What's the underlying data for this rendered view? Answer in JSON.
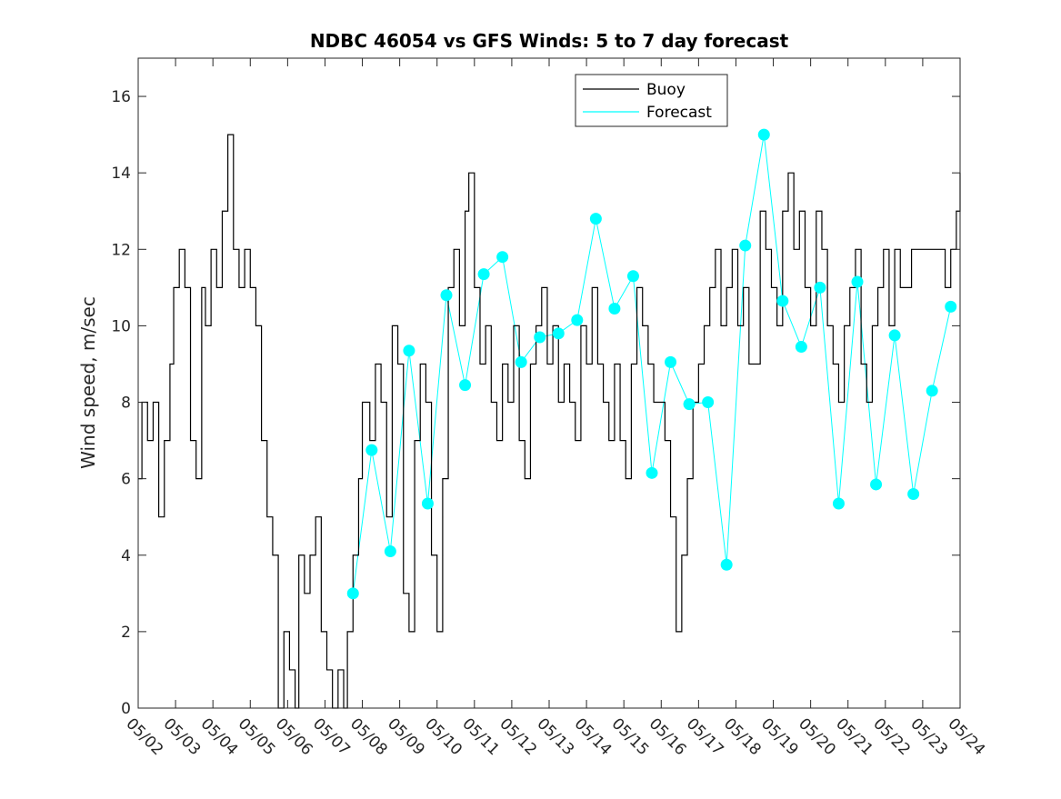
{
  "chart_data": {
    "type": "line",
    "title": "NDBC 46054 vs GFS Winds: 5 to 7 day forecast",
    "xlabel": "",
    "ylabel": "Wind speed, m/sec",
    "ylim": [
      0,
      17
    ],
    "yticks": [
      0,
      2,
      4,
      6,
      8,
      10,
      12,
      14,
      16
    ],
    "xlim_days": [
      0,
      22
    ],
    "xticks": [
      "05/02",
      "05/03",
      "05/04",
      "05/05",
      "05/06",
      "05/07",
      "05/08",
      "05/09",
      "05/10",
      "05/11",
      "05/12",
      "05/13",
      "05/14",
      "05/15",
      "05/16",
      "05/17",
      "05/18",
      "05/19",
      "05/20",
      "05/21",
      "05/22",
      "05/23",
      "05/24"
    ],
    "legend": {
      "placement": "top-right",
      "entries": [
        "Buoy",
        "Forecast"
      ]
    },
    "colors": {
      "buoy": "#000000",
      "forecast": "#00ffff"
    },
    "buoy": {
      "name": "Buoy",
      "x": [
        0,
        0.1,
        0.25,
        0.4,
        0.55,
        0.7,
        0.85,
        0.95,
        1.1,
        1.25,
        1.4,
        1.55,
        1.7,
        1.8,
        1.95,
        2.1,
        2.25,
        2.4,
        2.55,
        2.7,
        2.85,
        3.0,
        3.15,
        3.3,
        3.45,
        3.6,
        3.75,
        3.9,
        4.05,
        4.2,
        4.3,
        4.45,
        4.6,
        4.75,
        4.9,
        5.05,
        5.2,
        5.35,
        5.5,
        5.6,
        5.75,
        5.9,
        6.0,
        6.2,
        6.35,
        6.5,
        6.65,
        6.8,
        6.95,
        7.1,
        7.25,
        7.4,
        7.55,
        7.7,
        7.85,
        8.0,
        8.15,
        8.3,
        8.45,
        8.6,
        8.75,
        8.85,
        9.0,
        9.15,
        9.3,
        9.45,
        9.6,
        9.75,
        9.9,
        10.05,
        10.2,
        10.35,
        10.5,
        10.65,
        10.8,
        10.95,
        11.1,
        11.25,
        11.4,
        11.55,
        11.7,
        11.85,
        12.0,
        12.15,
        12.3,
        12.45,
        12.6,
        12.75,
        12.9,
        13.05,
        13.2,
        13.35,
        13.5,
        13.65,
        13.8,
        13.95,
        14.1,
        14.25,
        14.4,
        14.55,
        14.7,
        14.85,
        15.0,
        15.15,
        15.3,
        15.45,
        15.6,
        15.75,
        15.9,
        16.05,
        16.2,
        16.35,
        16.5,
        16.65,
        16.8,
        16.95,
        17.1,
        17.25,
        17.4,
        17.55,
        17.7,
        17.85,
        18.0,
        18.15,
        18.3,
        18.45,
        18.6,
        18.75,
        18.9,
        19.05,
        19.2,
        19.35,
        19.5,
        19.65,
        19.8,
        19.95,
        20.1,
        20.25,
        20.4,
        20.55,
        20.7,
        20.85,
        21.0,
        21.15,
        21.3,
        21.45,
        21.6,
        21.75,
        21.9,
        22.0
      ],
      "y": [
        6,
        8,
        7,
        8,
        5,
        7,
        9,
        11,
        12,
        11,
        7,
        6,
        11,
        10,
        12,
        11,
        13,
        15,
        12,
        11,
        12,
        11,
        10,
        7,
        5,
        4,
        0,
        2,
        1,
        0,
        4,
        3,
        4,
        5,
        2,
        1,
        0,
        1,
        0,
        2,
        4,
        6,
        8,
        7,
        9,
        8,
        5,
        10,
        9,
        3,
        2,
        7,
        9,
        8,
        4,
        2,
        6,
        11,
        12,
        10,
        13,
        14,
        11,
        9,
        10,
        8,
        7,
        9,
        8,
        10,
        7,
        6,
        9,
        10,
        11,
        9,
        10,
        8,
        9,
        8,
        7,
        10,
        9,
        11,
        9,
        8,
        7,
        9,
        7,
        6,
        9,
        11,
        10,
        9,
        8,
        8,
        7,
        5,
        2,
        4,
        6,
        8,
        9,
        10,
        11,
        12,
        10,
        11,
        12,
        10,
        11,
        9,
        9,
        13,
        12,
        11,
        10,
        13,
        14,
        12,
        13,
        11,
        10,
        13,
        12,
        10,
        9,
        8,
        10,
        11,
        12,
        9,
        8,
        10,
        11,
        12,
        10,
        12,
        11,
        11,
        12,
        12,
        12,
        12,
        12,
        12,
        11,
        12,
        13,
        14
      ],
      "comment_x_units": "days since 05/02"
    },
    "forecast_points": {
      "name": "Forecast",
      "x": [
        5.75,
        6.25,
        6.75,
        7.25,
        7.75,
        8.25,
        8.75,
        9.25,
        9.75,
        10.25,
        10.75,
        11.25,
        11.75,
        12.25,
        12.75,
        13.25,
        13.75,
        14.25,
        14.75,
        15.25,
        15.75,
        16.25,
        16.75,
        17.25,
        17.75,
        18.25,
        18.75,
        19.25,
        19.75,
        20.25,
        20.75,
        21.25,
        21.75
      ],
      "y": [
        3.0,
        6.75,
        4.1,
        9.35,
        5.35,
        10.8,
        8.45,
        11.35,
        11.8,
        9.05,
        9.7,
        9.8,
        10.15,
        12.8,
        10.45,
        11.3,
        6.15,
        9.05,
        7.95,
        8.0,
        3.75,
        12.1,
        15.0,
        10.65,
        9.45,
        11.0,
        5.35,
        11.15,
        5.85,
        9.75,
        5.6,
        8.3,
        10.5
      ]
    }
  }
}
